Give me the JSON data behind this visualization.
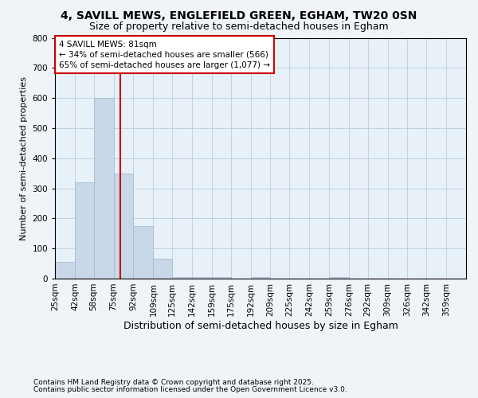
{
  "title1": "4, SAVILL MEWS, ENGLEFIELD GREEN, EGHAM, TW20 0SN",
  "title2": "Size of property relative to semi-detached houses in Egham",
  "xlabel": "Distribution of semi-detached houses by size in Egham",
  "ylabel": "Number of semi-detached properties",
  "bin_edges": [
    25,
    42,
    58,
    75,
    92,
    109,
    125,
    142,
    159,
    175,
    192,
    209,
    225,
    242,
    259,
    276,
    292,
    309,
    326,
    342,
    359
  ],
  "bar_heights": [
    55,
    320,
    600,
    350,
    175,
    65,
    5,
    5,
    5,
    0,
    5,
    0,
    0,
    0,
    5,
    0,
    0,
    0,
    0,
    0
  ],
  "bar_color": "#c8d8e8",
  "bar_edge_color": "#a0b8cc",
  "grid_color": "#b8cfe0",
  "background_color": "#e8f0f8",
  "fig_background": "#f0f4f8",
  "property_size": 81,
  "red_line_color": "#cc0000",
  "annotation_line1": "4 SAVILL MEWS: 81sqm",
  "annotation_line2": "← 34% of semi-detached houses are smaller (566)",
  "annotation_line3": "65% of semi-detached houses are larger (1,077) →",
  "annotation_box_color": "#cc0000",
  "ylim": [
    0,
    800
  ],
  "yticks": [
    0,
    100,
    200,
    300,
    400,
    500,
    600,
    700,
    800
  ],
  "footnote1": "Contains HM Land Registry data © Crown copyright and database right 2025.",
  "footnote2": "Contains public sector information licensed under the Open Government Licence v3.0.",
  "title1_fontsize": 10,
  "title2_fontsize": 9,
  "xlabel_fontsize": 9,
  "ylabel_fontsize": 8,
  "tick_fontsize": 7.5,
  "annot_fontsize": 7.5,
  "footnote_fontsize": 6.5
}
